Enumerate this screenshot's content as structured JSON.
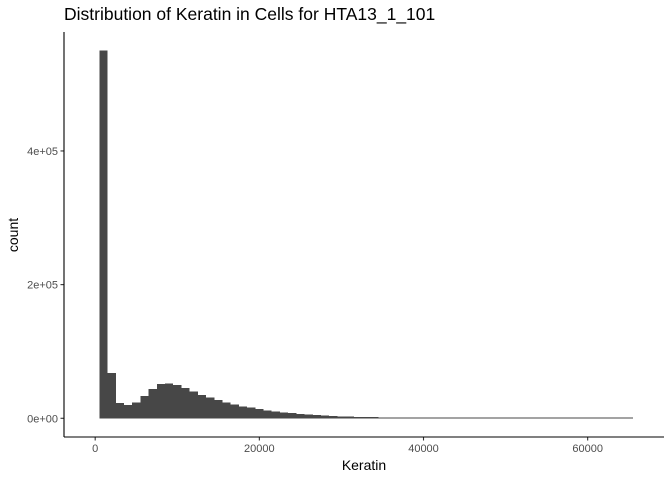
{
  "chart_data": {
    "type": "bar",
    "title": "Distribution of Keratin in Cells for HTA13_1_101",
    "xlabel": "Keratin",
    "ylabel": "count",
    "xlim": [
      -3800,
      69300
    ],
    "ylim": [
      -28000,
      578000
    ],
    "x_ticks": [
      0,
      20000,
      40000,
      60000
    ],
    "x_tick_labels": [
      "0",
      "20000",
      "40000",
      "60000"
    ],
    "y_ticks": [
      0,
      200000,
      400000
    ],
    "y_tick_labels": [
      "0e+00",
      "2e+05",
      "4e+05"
    ],
    "bin_width": 1000,
    "bins_x": [
      1000,
      2000,
      3000,
      4000,
      5000,
      6000,
      7000,
      8000,
      9000,
      10000,
      11000,
      12000,
      13000,
      14000,
      15000,
      16000,
      17000,
      18000,
      19000,
      20000,
      21000,
      22000,
      23000,
      24000,
      25000,
      26000,
      27000,
      28000,
      29000,
      30000,
      31000,
      32000,
      33000,
      34000,
      35000,
      36000,
      37000,
      38000,
      39000,
      40000,
      41000,
      42000,
      43000,
      44000,
      45000,
      46000,
      47000,
      48000,
      49000,
      50000,
      51000,
      52000,
      53000,
      54000,
      55000,
      56000,
      57000,
      58000,
      59000,
      60000,
      61000,
      62000,
      63000,
      64000,
      65000
    ],
    "values": [
      550000,
      68000,
      23000,
      20000,
      24000,
      33000,
      44000,
      51000,
      52000,
      50000,
      45000,
      40000,
      35000,
      31000,
      27000,
      24000,
      21000,
      18000,
      16000,
      14000,
      12000,
      10500,
      9000,
      7800,
      6600,
      5600,
      4700,
      4000,
      3400,
      2900,
      2500,
      2200,
      1900,
      1600,
      1400,
      1200,
      1000,
      900,
      800,
      700,
      600,
      500,
      450,
      400,
      350,
      300,
      280,
      260,
      240,
      220,
      200,
      180,
      160,
      150,
      140,
      130,
      120,
      110,
      100,
      90,
      80,
      70,
      60,
      50,
      40
    ],
    "fill_color": "#474747",
    "grid": false,
    "legend": "none"
  }
}
